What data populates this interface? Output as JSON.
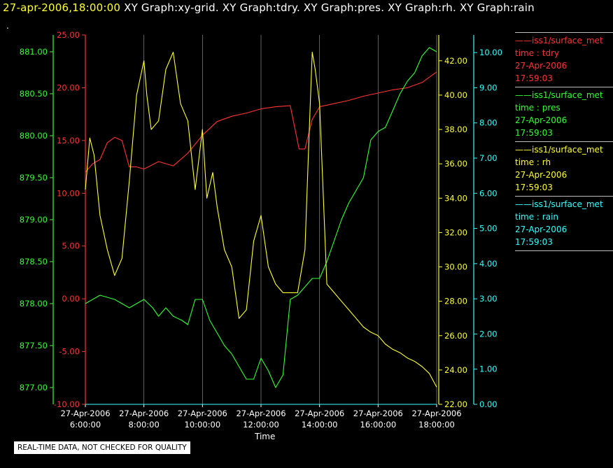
{
  "header": {
    "time": "27-apr-2006,18:00:00",
    "graphs": " XY Graph:xy-grid.  XY Graph:tdry.  XY Graph:pres.  XY Graph:rh.  XY Graph:rain",
    "dot": "."
  },
  "footer": {
    "quality_note": "REAL-TIME DATA, NOT CHECKED FOR QUALITY",
    "xlabel": "Time"
  },
  "legend": [
    {
      "name": "iss1/surface_met",
      "var": "time : tdry",
      "date": "27-Apr-2006",
      "time": "17:59:03",
      "color": "#ff3333"
    },
    {
      "name": "iss1/surface_met",
      "var": "time : pres",
      "date": "27-Apr-2006",
      "time": "17:59:03",
      "color": "#33ff33"
    },
    {
      "name": "iss1/surface_met",
      "var": "time : rh",
      "date": "27-Apr-2006",
      "time": "17:59:03",
      "color": "#ffff33"
    },
    {
      "name": "iss1/surface_met",
      "var": "time : rain",
      "date": "27-Apr-2006",
      "time": "17:59:03",
      "color": "#33ffff"
    }
  ],
  "chart_data": {
    "type": "line",
    "xlabel": "Time",
    "xlim": [
      6,
      18
    ],
    "x_ticks": [
      {
        "date": "27-Apr-2006",
        "time": "6:00:00"
      },
      {
        "date": "27-Apr-2006",
        "time": "8:00:00"
      },
      {
        "date": "27-Apr-2006",
        "time": "10:00:00"
      },
      {
        "date": "27-Apr-2006",
        "time": "12:00:00"
      },
      {
        "date": "27-Apr-2006",
        "time": "14:00:00"
      },
      {
        "date": "27-Apr-2006",
        "time": "16:00:00"
      },
      {
        "date": "27-Apr-2006",
        "time": "18:00:00"
      }
    ],
    "grid": true,
    "axes": {
      "tdry": {
        "color": "#ff3333",
        "range": [
          -10,
          25
        ],
        "ticks": [
          "-10.00",
          "-5.00",
          "0.00",
          "5.00",
          "10.00",
          "15.00",
          "20.00",
          "25.00"
        ],
        "side": "left"
      },
      "pres": {
        "color": "#33ff33",
        "range": [
          876.8,
          881.2
        ],
        "ticks": [
          "877.00",
          "877.50",
          "878.00",
          "878.50",
          "879.00",
          "879.50",
          "880.00",
          "880.50",
          "881.00"
        ],
        "side": "left"
      },
      "rh": {
        "color": "#ffff33",
        "range": [
          22,
          43.5
        ],
        "ticks": [
          "22.00",
          "24.00",
          "26.00",
          "28.00",
          "30.00",
          "32.00",
          "34.00",
          "36.00",
          "38.00",
          "40.00",
          "42.00"
        ],
        "side": "right"
      },
      "rain": {
        "color": "#33ffff",
        "range": [
          0,
          10.5
        ],
        "ticks": [
          "0.00",
          "1.00",
          "2.00",
          "3.00",
          "4.00",
          "5.00",
          "6.00",
          "7.00",
          "8.00",
          "9.00",
          "10.00"
        ],
        "side": "right"
      }
    },
    "series": [
      {
        "name": "tdry",
        "axis": "tdry",
        "color": "#ff3333",
        "x": [
          6.0,
          6.25,
          6.5,
          6.75,
          7.0,
          7.25,
          7.5,
          7.75,
          8.0,
          8.5,
          9.0,
          9.5,
          10.0,
          10.5,
          11.0,
          11.5,
          12.0,
          12.5,
          13.0,
          13.3,
          13.5,
          13.75,
          14.0,
          14.5,
          15.0,
          15.5,
          16.0,
          16.5,
          17.0,
          17.5,
          18.0
        ],
        "y": [
          12.0,
          12.8,
          13.2,
          14.8,
          15.3,
          15.0,
          12.5,
          12.5,
          12.3,
          13.0,
          12.6,
          13.8,
          15.5,
          16.8,
          17.3,
          17.6,
          18.0,
          18.2,
          18.3,
          14.2,
          14.2,
          17.0,
          18.2,
          18.5,
          18.8,
          19.2,
          19.5,
          19.8,
          20.0,
          20.5,
          21.5
        ]
      },
      {
        "name": "pres",
        "axis": "pres",
        "color": "#33ff33",
        "x": [
          6.0,
          6.5,
          7.0,
          7.5,
          8.0,
          8.3,
          8.5,
          8.75,
          9.0,
          9.3,
          9.5,
          9.75,
          10.0,
          10.25,
          10.5,
          10.75,
          11.0,
          11.25,
          11.5,
          11.75,
          12.0,
          12.25,
          12.5,
          12.75,
          13.0,
          13.25,
          13.5,
          13.75,
          14.0,
          14.25,
          14.5,
          14.75,
          15.0,
          15.25,
          15.5,
          15.75,
          16.0,
          16.25,
          16.5,
          16.75,
          17.0,
          17.25,
          17.5,
          17.75,
          18.0
        ],
        "y": [
          878.0,
          878.1,
          878.05,
          877.95,
          878.05,
          877.95,
          877.85,
          877.95,
          877.85,
          877.8,
          877.75,
          878.05,
          878.05,
          877.8,
          877.65,
          877.5,
          877.4,
          877.25,
          877.1,
          877.1,
          877.35,
          877.2,
          877.0,
          877.15,
          878.05,
          878.1,
          878.2,
          878.3,
          878.3,
          878.5,
          878.75,
          879.0,
          879.2,
          879.35,
          879.5,
          879.95,
          880.05,
          880.1,
          880.3,
          880.5,
          880.65,
          880.75,
          880.95,
          881.05,
          881.0
        ]
      },
      {
        "name": "rh",
        "axis": "rh",
        "color": "#ffff33",
        "x": [
          6.0,
          6.15,
          6.3,
          6.5,
          6.75,
          7.0,
          7.25,
          7.5,
          7.75,
          8.0,
          8.1,
          8.25,
          8.5,
          8.75,
          9.0,
          9.25,
          9.5,
          9.75,
          10.0,
          10.15,
          10.35,
          10.5,
          10.75,
          11.0,
          11.25,
          11.5,
          11.75,
          12.0,
          12.25,
          12.5,
          12.75,
          13.0,
          13.25,
          13.5,
          13.65,
          13.75,
          13.85,
          14.0,
          14.25,
          14.5,
          14.75,
          15.0,
          15.25,
          15.5,
          15.75,
          16.0,
          16.25,
          16.5,
          16.75,
          17.0,
          17.25,
          17.5,
          17.75,
          18.0
        ],
        "y": [
          34.5,
          37.5,
          36.5,
          33.0,
          31.0,
          29.5,
          30.5,
          35.0,
          40.0,
          42.0,
          40.0,
          38.0,
          38.5,
          41.5,
          42.5,
          39.5,
          38.5,
          34.5,
          38.0,
          34.0,
          35.5,
          33.5,
          31.0,
          30.0,
          27.0,
          27.5,
          31.5,
          33.0,
          30.0,
          29.0,
          28.5,
          28.5,
          28.5,
          31.0,
          38.0,
          42.5,
          41.5,
          39.5,
          29.0,
          28.5,
          28.0,
          27.5,
          27.0,
          26.5,
          26.2,
          26.0,
          25.5,
          25.2,
          25.0,
          24.7,
          24.5,
          24.2,
          23.8,
          23.0
        ]
      },
      {
        "name": "rain",
        "axis": "rain",
        "color": "#33ffff",
        "x": [
          6.0,
          18.0
        ],
        "y": [
          0.0,
          0.0
        ]
      }
    ]
  }
}
